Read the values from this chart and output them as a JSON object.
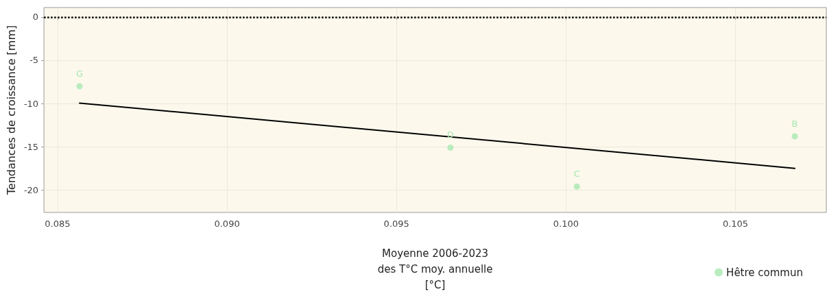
{
  "chart_data": {
    "type": "scatter",
    "xlabel": "Moyenne 2006-2023\ndes T°C moy. annuelle\n[°C]",
    "ylabel": "Tendances de croissance [mm]",
    "series": [
      {
        "name": "Hêtre commun",
        "color": "#a8e8b0",
        "x": [
          0.08565,
          0.09659,
          0.10032,
          0.10675
        ],
        "values": [
          -8.0,
          -15.1,
          -19.6,
          -13.8
        ]
      },
      {
        "type": "line",
        "color": "#000000",
        "x": [
          0.08565,
          0.10675
        ],
        "values": [
          -9.95,
          -17.5
        ],
        "marker": "none",
        "line_style": "solid"
      }
    ],
    "annotations": [
      {
        "text": "G",
        "x": 0.08565,
        "y": -8.0
      },
      {
        "text": "D",
        "x": 0.09659,
        "y": -15.1
      },
      {
        "text": "C",
        "x": 0.10032,
        "y": -19.6
      },
      {
        "text": "B",
        "x": 0.10675,
        "y": -13.8
      }
    ],
    "ref_lines": [
      {
        "axis": "y",
        "value": 0,
        "color": "#000000",
        "line_style": "dotted"
      }
    ],
    "xlim": [
      0.0846,
      0.10768
    ],
    "xticks": [
      0.085,
      {
        "value": 0.09,
        "label": "0.090"
      },
      0.095,
      {
        "value": 0.1,
        "label": "0.100"
      },
      0.105
    ],
    "ylim": [
      -22.6,
      1.1
    ],
    "yticks": [
      -20,
      -15,
      -10,
      -5,
      0
    ],
    "grid": true,
    "legend": "bottom right",
    "marker": "circle"
  }
}
